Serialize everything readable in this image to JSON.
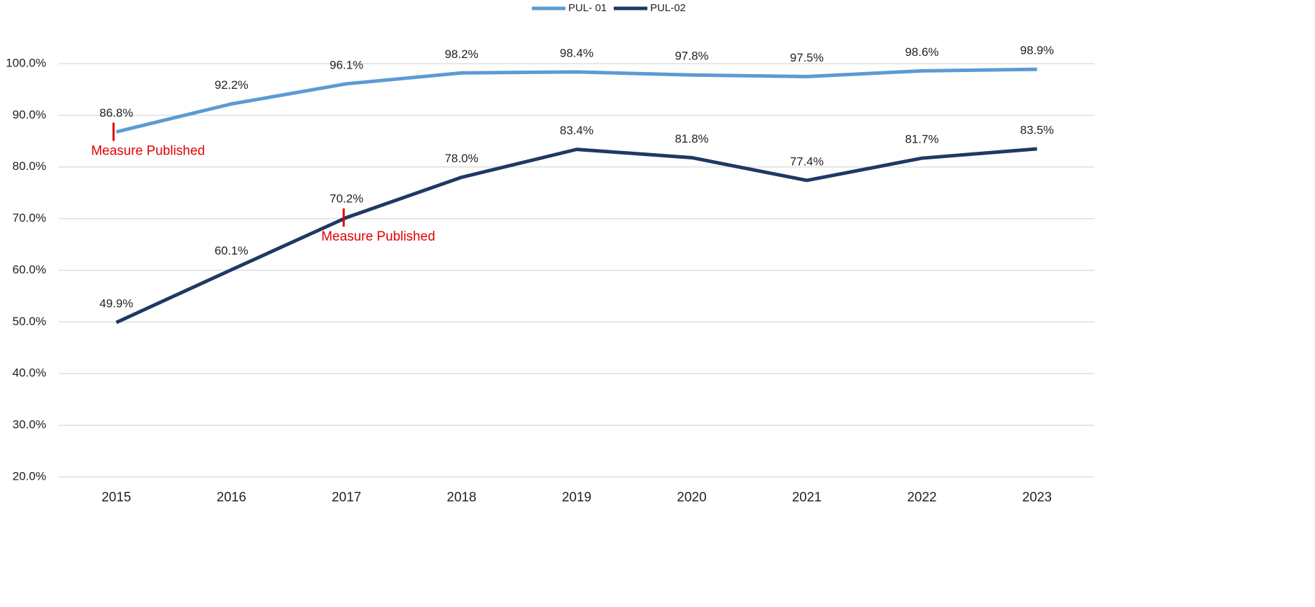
{
  "chart_data": {
    "type": "line",
    "categories": [
      "2015",
      "2016",
      "2017",
      "2018",
      "2019",
      "2020",
      "2021",
      "2022",
      "2023"
    ],
    "series": [
      {
        "name": "PUL- 01",
        "color": "#5b9bd5",
        "values": [
          86.8,
          92.2,
          96.1,
          98.2,
          98.4,
          97.8,
          97.5,
          98.6,
          98.9
        ],
        "value_labels": [
          "86.8%",
          "92.2%",
          "96.1%",
          "98.2%",
          "98.4%",
          "97.8%",
          "97.5%",
          "98.6%",
          "98.9%"
        ]
      },
      {
        "name": "PUL-02",
        "color": "#203864",
        "values": [
          49.9,
          60.1,
          70.2,
          78.0,
          83.4,
          81.8,
          77.4,
          81.7,
          83.5
        ],
        "value_labels": [
          "49.9%",
          "60.1%",
          "70.2%",
          "78.0%",
          "83.4%",
          "81.8%",
          "77.4%",
          "81.7%",
          "83.5%"
        ]
      }
    ],
    "ylim": [
      20,
      100
    ],
    "yticks": [
      {
        "value": 20,
        "label": "20.0%"
      },
      {
        "value": 30,
        "label": "30.0%"
      },
      {
        "value": 40,
        "label": "40.0%"
      },
      {
        "value": 50,
        "label": "50.0%"
      },
      {
        "value": 60,
        "label": "60.0%"
      },
      {
        "value": 70,
        "label": "70.0%"
      },
      {
        "value": 80,
        "label": "80.0%"
      },
      {
        "value": 90,
        "label": "90.0%"
      },
      {
        "value": 100,
        "label": "100.0%"
      }
    ],
    "grid": true,
    "legend": "top",
    "annotations": [
      {
        "text": "Measure Published",
        "category": "2015",
        "series": "PUL- 01",
        "color": "#e00000"
      },
      {
        "text": "Measure Published",
        "category": "2017",
        "series": "PUL-02",
        "color": "#e00000"
      }
    ]
  }
}
